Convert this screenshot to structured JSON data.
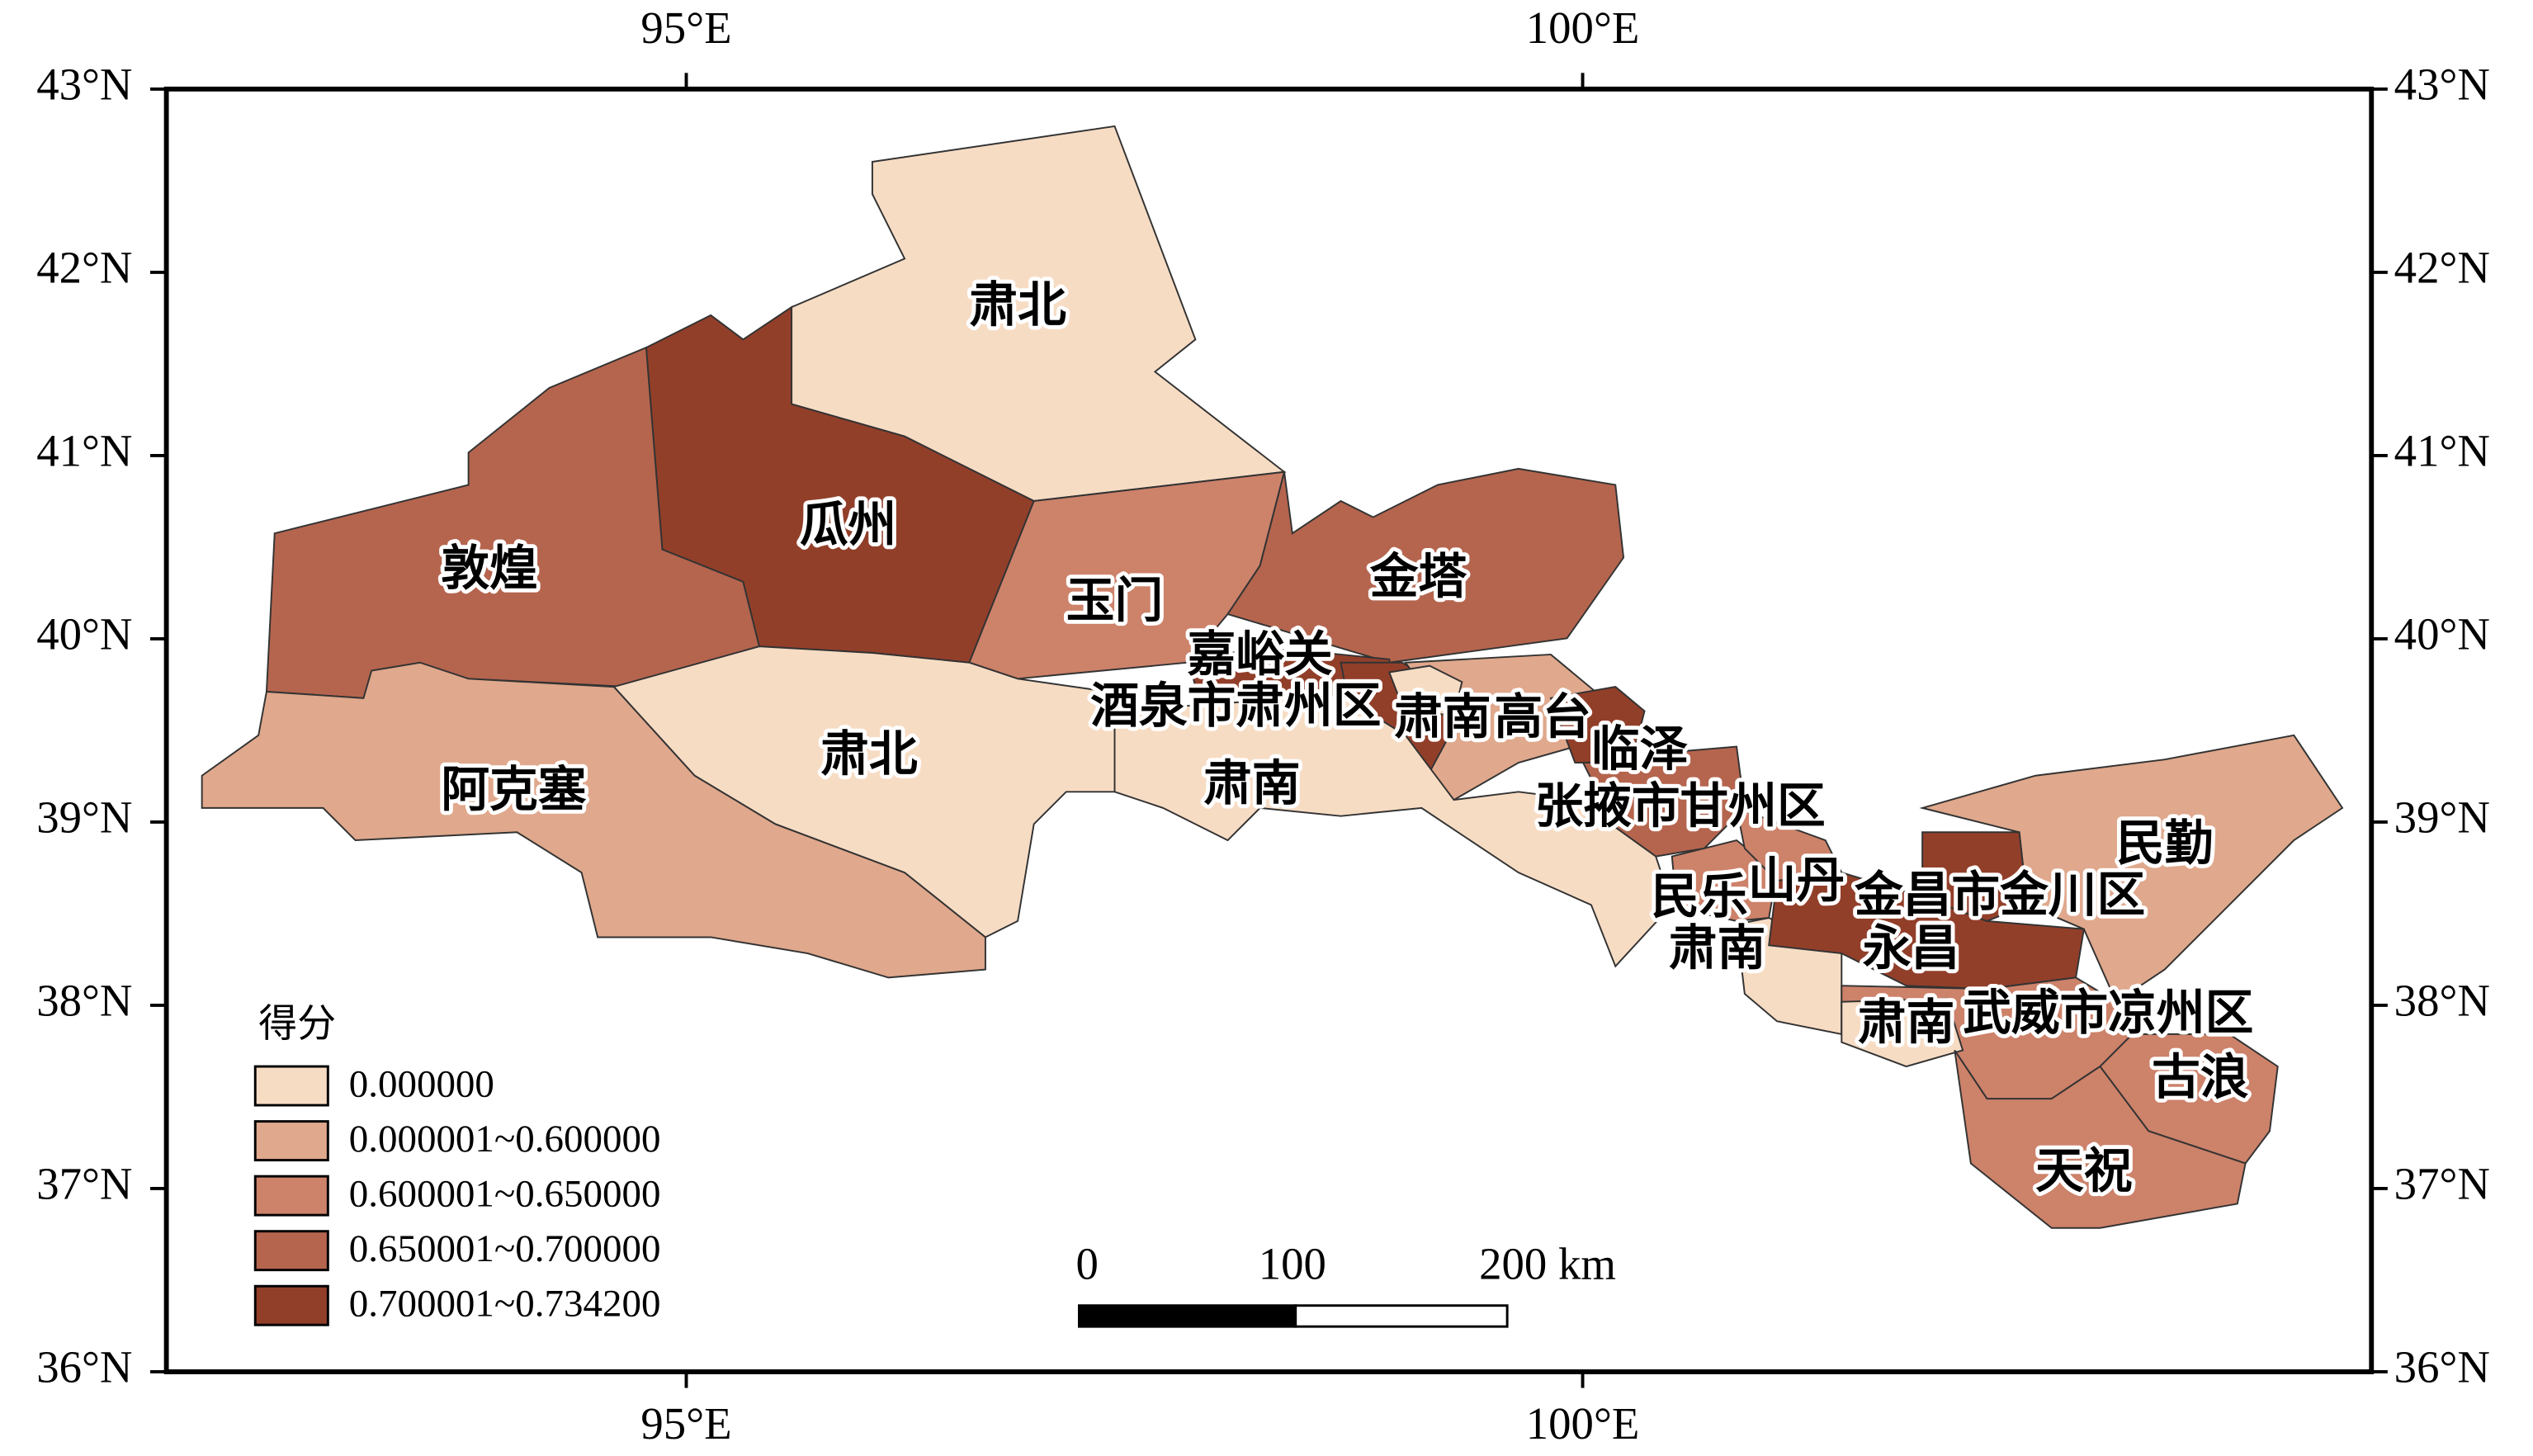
{
  "map": {
    "xlim": [
      92.1,
      104.4
    ],
    "ylim": [
      36,
      43
    ],
    "xticks": [
      {
        "value": 95,
        "label": "95°E"
      },
      {
        "value": 100,
        "label": "100°E"
      }
    ],
    "yticks": [
      {
        "value": 43,
        "label": "43°N"
      },
      {
        "value": 42,
        "label": "42°N"
      },
      {
        "value": 41,
        "label": "41°N"
      },
      {
        "value": 40,
        "label": "40°N"
      },
      {
        "value": 39,
        "label": "39°N"
      },
      {
        "value": 38,
        "label": "38°N"
      },
      {
        "value": 37,
        "label": "37°N"
      },
      {
        "value": 36,
        "label": "36°N"
      }
    ],
    "regions": [
      {
        "label": "肃北",
        "color": "#f7dcc4"
      },
      {
        "label": "瓜州",
        "color": "#923f2a"
      },
      {
        "label": "敦煌",
        "color": "#b5654e"
      },
      {
        "label": "玉门",
        "color": "#cd826a"
      },
      {
        "label": "金塔",
        "color": "#b5654e"
      },
      {
        "label": "嘉峪关",
        "color": "#923f2a"
      },
      {
        "label": "酒泉市肃州区",
        "color": "#923f2a"
      },
      {
        "label": "高台",
        "color": "#e0a88c"
      },
      {
        "label": "肃南",
        "color": "#f7dcc4"
      },
      {
        "label": "临泽",
        "color": "#923f2a"
      },
      {
        "label": "张掖市甘州区",
        "color": "#b5654e"
      },
      {
        "label": "肃北",
        "color": "#f7dcc4"
      },
      {
        "label": "肃南",
        "color": "#f7dcc4"
      },
      {
        "label": "阿克塞",
        "color": "#e0a88c"
      },
      {
        "label": "民乐",
        "color": "#cd826a"
      },
      {
        "label": "山丹",
        "color": "#cd826a"
      },
      {
        "label": "肃南",
        "color": "#f7dcc4"
      },
      {
        "label": "民勤",
        "color": "#e0a88c"
      },
      {
        "label": "永昌",
        "color": "#923f2a"
      },
      {
        "label": "金昌市金川区",
        "color": "#923f2a"
      },
      {
        "label": "武威市凉州区",
        "color": "#cd826a"
      },
      {
        "label": "肃南",
        "color": "#f7dcc4"
      },
      {
        "label": "古浪",
        "color": "#cd826a"
      },
      {
        "label": "天祝",
        "color": "#cd826a"
      }
    ],
    "legend": {
      "title": "得分",
      "items": [
        {
          "label": "0.000000",
          "color": "#f7dcc4"
        },
        {
          "label": "0.000001~0.600000",
          "color": "#e0a88c"
        },
        {
          "label": "0.600001~0.650000",
          "color": "#cd826a"
        },
        {
          "label": "0.650001~0.700000",
          "color": "#b5654e"
        },
        {
          "label": "0.700001~0.734200",
          "color": "#923f2a"
        }
      ]
    },
    "scale_bar": {
      "labels": [
        "0",
        "100",
        "200 km"
      ]
    }
  }
}
